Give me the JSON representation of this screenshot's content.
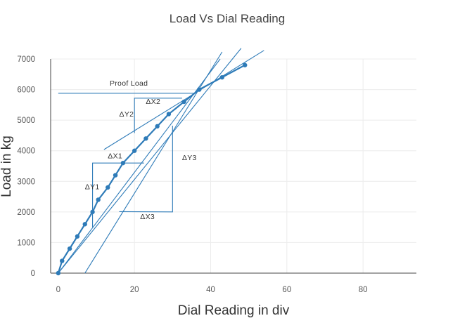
{
  "chart_data": {
    "type": "line",
    "title": "Load Vs Dial Reading",
    "xlabel": "Dial Reading in div",
    "ylabel": "Load in kg",
    "xlim": [
      -2,
      94
    ],
    "ylim": [
      0,
      7000
    ],
    "x_ticks": [
      0,
      20,
      40,
      60,
      80
    ],
    "y_ticks": [
      0,
      1000,
      2000,
      3000,
      4000,
      5000,
      6000,
      7000
    ],
    "grid": true,
    "color": "#2e7bb8",
    "series": [
      {
        "name": "",
        "x": [
          0,
          1,
          3,
          5,
          7,
          9,
          10.5,
          13,
          15,
          17,
          20,
          23,
          26,
          29,
          33,
          37,
          43,
          49
        ],
        "y": [
          0,
          400,
          800,
          1200,
          1600,
          2000,
          2400,
          2800,
          3200,
          3600,
          4000,
          4400,
          4800,
          5200,
          5600,
          6000,
          6400,
          6800
        ]
      }
    ],
    "annotations": [
      {
        "text": "Proof Load",
        "x": 13.5,
        "y": 6130
      },
      {
        "text": "ΔX2",
        "x": 23,
        "y": 5530
      },
      {
        "text": "ΔY2",
        "x": 16,
        "y": 5120
      },
      {
        "text": "ΔX1",
        "x": 13,
        "y": 3750
      },
      {
        "text": "ΔY1",
        "x": 7,
        "y": 2740
      },
      {
        "text": "ΔY3",
        "x": 32.5,
        "y": 3700
      },
      {
        "text": "ΔX3",
        "x": 21.5,
        "y": 1770
      }
    ]
  }
}
